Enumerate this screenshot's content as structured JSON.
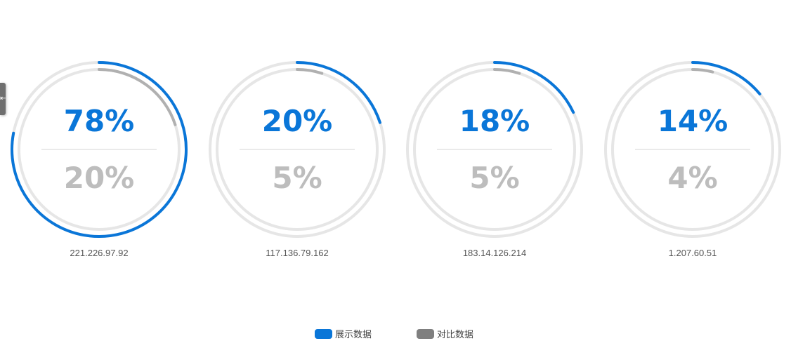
{
  "colors": {
    "primary": "#0a76d8",
    "compare": "#b0b0b0",
    "compare_text": "#bdbdbd",
    "track": "#e6e6e6",
    "label": "#555555",
    "legend_primary_swatch": "#0a76d8",
    "legend_compare_swatch": "#7f7f7f"
  },
  "side_tab": {
    "glyph": "⇤"
  },
  "chart_data": {
    "type": "gauge",
    "categories": [
      "221.226.97.92",
      "117.136.79.162",
      "183.14.126.214",
      "1.207.60.51"
    ],
    "series": [
      {
        "name": "展示数据",
        "values": [
          78,
          20,
          18,
          14
        ]
      },
      {
        "name": "对比数据",
        "values": [
          20,
          5,
          5,
          4
        ]
      }
    ],
    "value_labels": {
      "primary": [
        "78%",
        "20%",
        "18%",
        "14%"
      ],
      "compare": [
        "20%",
        "5%",
        "5%",
        "4%"
      ]
    },
    "unit": "%",
    "max": 100,
    "legend_position": "bottom-center"
  }
}
